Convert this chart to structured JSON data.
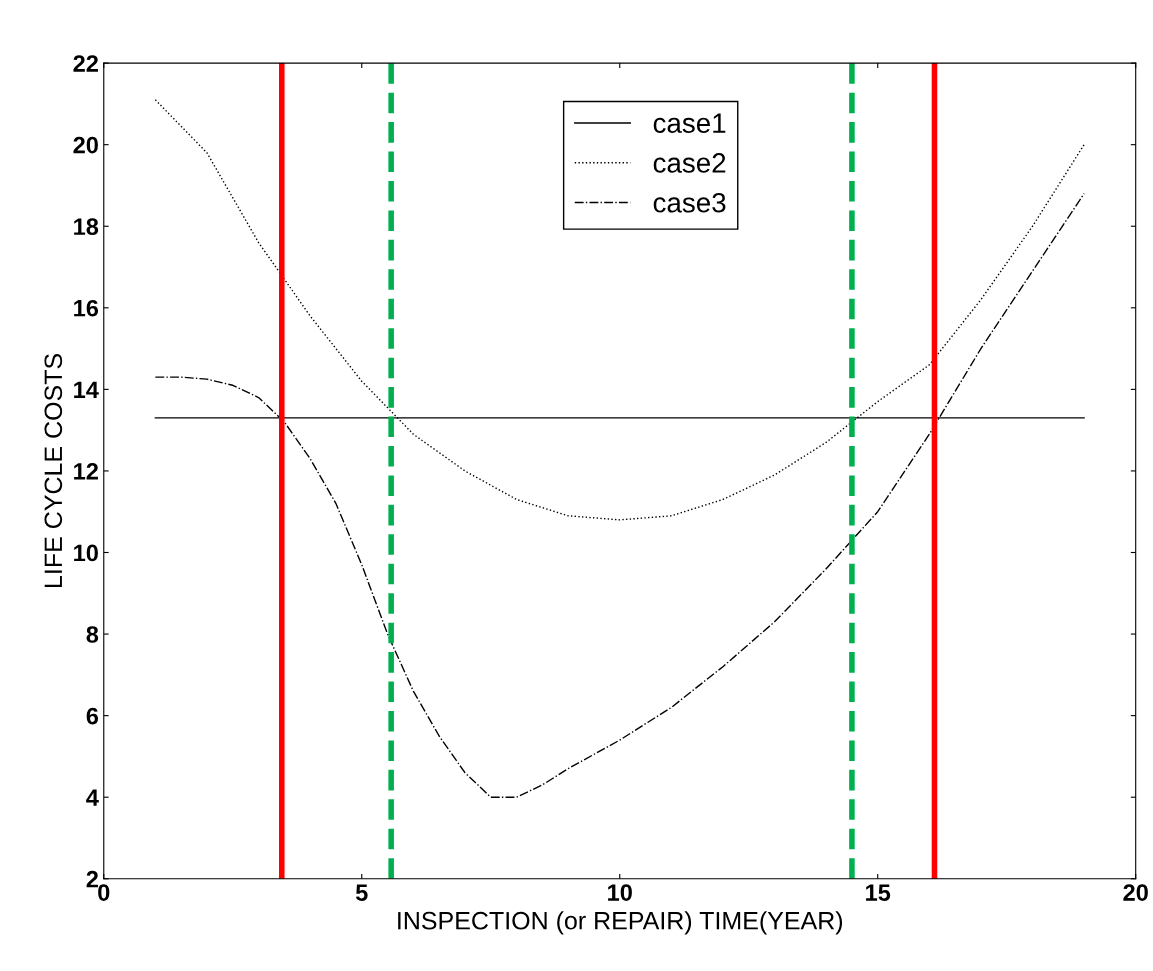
{
  "chart_data": {
    "type": "line",
    "xlabel": "INSPECTION (or REPAIR) TIME(YEAR)",
    "ylabel": "LIFE CYCLE COSTS",
    "xlim": [
      0,
      20
    ],
    "ylim": [
      2,
      22
    ],
    "xticks": [
      0,
      5,
      10,
      15,
      20
    ],
    "yticks": [
      2,
      4,
      6,
      8,
      10,
      12,
      14,
      16,
      18,
      20,
      22
    ],
    "grid": false,
    "legend": "top",
    "marker": "none",
    "series": [
      {
        "name": "case1",
        "color": "#000000",
        "line_style": "solid",
        "x": [
          1,
          19
        ],
        "values": [
          13.3,
          13.3
        ]
      },
      {
        "name": "case2",
        "color": "#000000",
        "line_style": "dotted",
        "x": [
          1,
          2,
          3,
          4,
          5,
          6,
          7,
          8,
          9,
          10,
          11,
          12,
          13,
          14,
          15,
          16,
          17,
          18,
          19
        ],
        "values": [
          21.1,
          19.8,
          17.6,
          15.8,
          14.2,
          12.9,
          12.0,
          11.3,
          10.9,
          10.8,
          10.9,
          11.3,
          11.9,
          12.7,
          13.7,
          14.6,
          16.2,
          18.0,
          20.0
        ]
      },
      {
        "name": "case3",
        "color": "#000000",
        "line_style": "dashdot",
        "x": [
          1,
          1.5,
          2,
          2.5,
          3,
          3.5,
          4,
          4.5,
          5,
          5.5,
          6,
          6.5,
          7,
          7.5,
          8,
          8.5,
          9,
          10,
          11,
          12,
          13,
          14,
          15,
          16,
          17,
          18,
          19
        ],
        "values": [
          14.3,
          14.3,
          14.25,
          14.1,
          13.8,
          13.2,
          12.3,
          11.2,
          9.7,
          8.0,
          6.6,
          5.5,
          4.6,
          4.0,
          4.0,
          4.3,
          4.7,
          5.4,
          6.2,
          7.2,
          8.3,
          9.6,
          11.0,
          12.9,
          15.0,
          16.9,
          18.8
        ]
      }
    ],
    "ref_lines": [
      {
        "axis": "x",
        "value": 3.45,
        "color": "#ff0000",
        "line_style": "solid"
      },
      {
        "axis": "x",
        "value": 5.57,
        "color": "#00b050",
        "line_style": "dashed"
      },
      {
        "axis": "x",
        "value": 14.5,
        "color": "#00b050",
        "line_style": "dashed"
      },
      {
        "axis": "x",
        "value": 16.1,
        "color": "#ff0000",
        "line_style": "solid"
      }
    ]
  }
}
